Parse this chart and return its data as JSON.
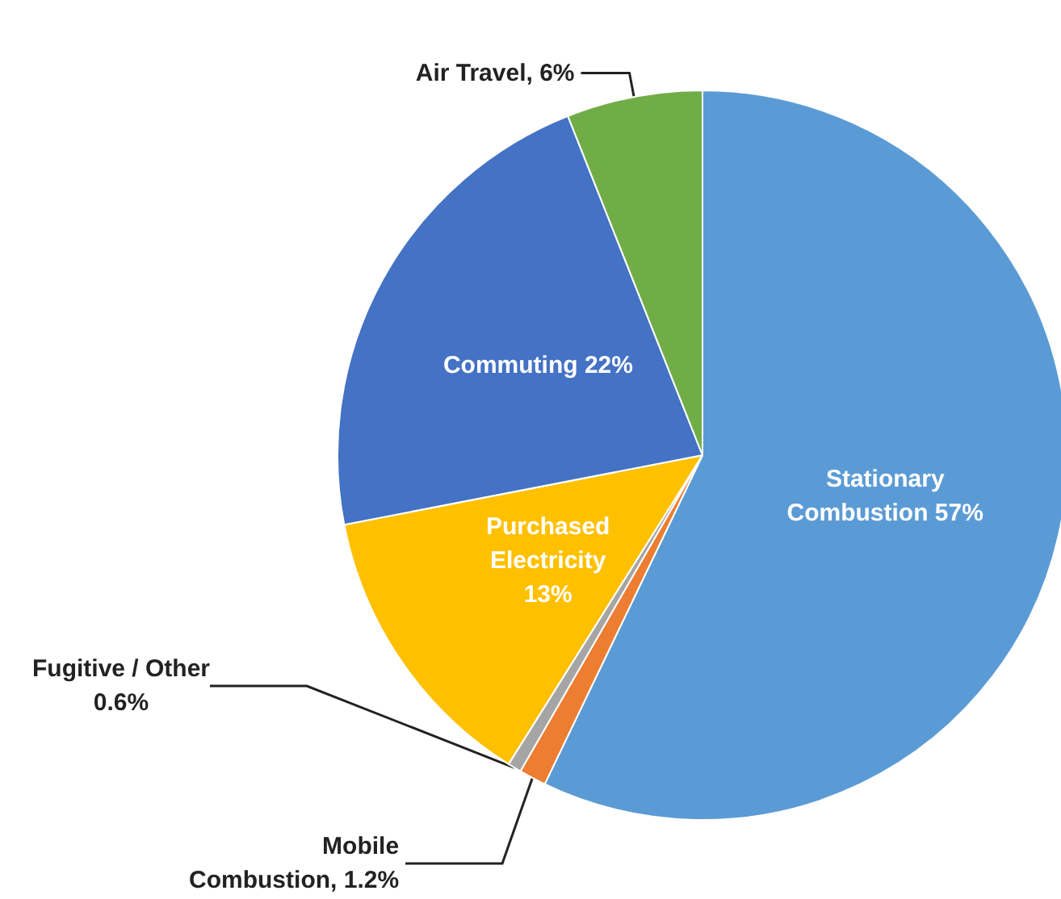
{
  "chart_data": {
    "type": "pie",
    "categories": [
      "Stationary Combustion",
      "Mobile Combustion",
      "Fugitive / Other",
      "Purchased Electricity",
      "Commuting",
      "Air Travel"
    ],
    "values": [
      57,
      1.2,
      0.6,
      13,
      22,
      6
    ],
    "value_labels": [
      "57%",
      "1.2%",
      "0.6%",
      "13%",
      "22%",
      "6%"
    ],
    "colors": [
      "#5b9bd5",
      "#ed7d31",
      "#a5a5a5",
      "#ffc000",
      "#4472c4",
      "#70ad47"
    ],
    "legend": false
  }
}
